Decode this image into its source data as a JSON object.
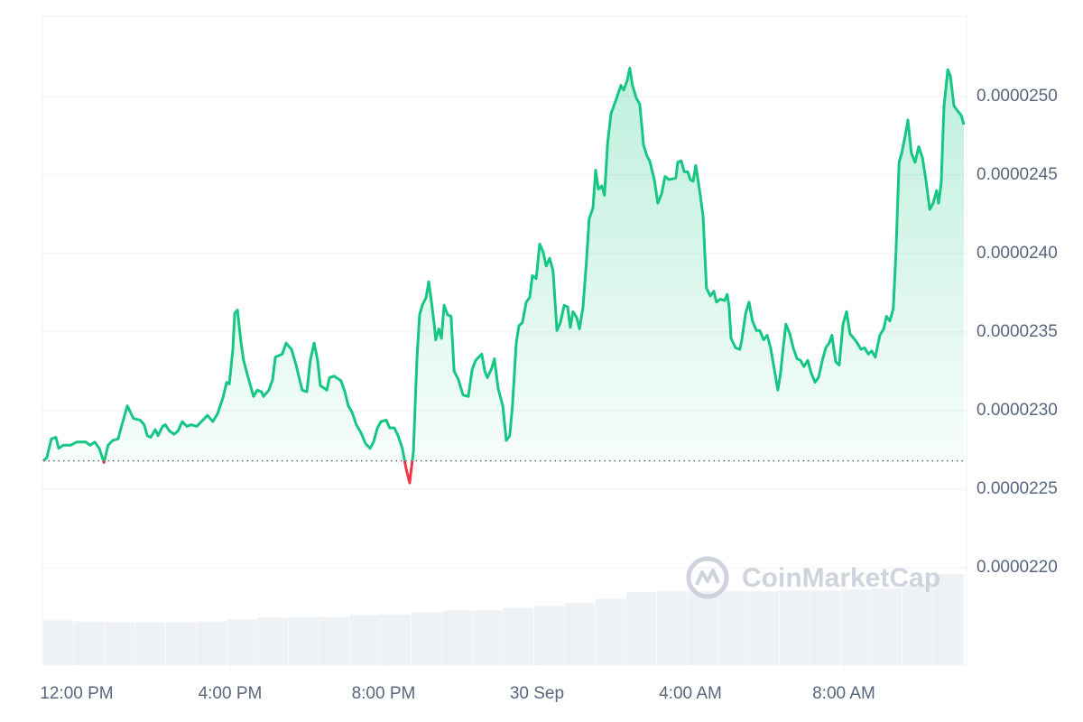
{
  "chart_data": {
    "type": "line",
    "watermark": "CoinMarketCap",
    "x": [
      -0.87,
      -0.78,
      -0.66,
      -0.54,
      -0.47,
      -0.35,
      -0.16,
      0,
      0.24,
      0.35,
      0.47,
      0.59,
      0.71,
      0.82,
      0.94,
      1.08,
      1.18,
      1.32,
      1.48,
      1.65,
      1.76,
      1.84,
      1.93,
      2.05,
      2.12,
      2.24,
      2.31,
      2.42,
      2.54,
      2.64,
      2.75,
      2.87,
      2.99,
      3.13,
      3.29,
      3.41,
      3.55,
      3.67,
      3.81,
      3.91,
      3.98,
      4.07,
      4.12,
      4.19,
      4.28,
      4.35,
      4.47,
      4.61,
      4.71,
      4.82,
      4.87,
      5.01,
      5.11,
      5.18,
      5.36,
      5.46,
      5.6,
      5.72,
      5.81,
      5.88,
      6,
      6.09,
      6.19,
      6.28,
      6.35,
      6.52,
      6.59,
      6.71,
      6.89,
      6.99,
      7.08,
      7.18,
      7.29,
      7.41,
      7.53,
      7.65,
      7.74,
      7.84,
      7.93,
      8.07,
      8.16,
      8.28,
      8.38,
      8.49,
      8.59,
      8.68,
      8.78,
      8.87,
      8.94,
      9.01,
      9.11,
      9.18,
      9.25,
      9.32,
      9.36,
      9.44,
      9.51,
      9.58,
      9.67,
      9.76,
      9.84,
      9.95,
      10.07,
      10.21,
      10.31,
      10.4,
      10.56,
      10.64,
      10.71,
      10.82,
      10.89,
      10.99,
      11.11,
      11.2,
      11.29,
      11.36,
      11.46,
      11.53,
      11.62,
      11.72,
      11.81,
      11.88,
      11.98,
      12.07,
      12.16,
      12.24,
      12.33,
      12.42,
      12.52,
      12.61,
      12.71,
      12.8,
      12.87,
      12.94,
      13.04,
      13.11,
      13.2,
      13.29,
      13.36,
      13.46,
      13.53,
      13.6,
      13.69,
      13.76,
      13.84,
      13.93,
      14.05,
      14.19,
      14.26,
      14.35,
      14.42,
      14.49,
      14.59,
      14.68,
      14.78,
      14.87,
      14.94,
      15.06,
      15.15,
      15.25,
      15.34,
      15.44,
      15.62,
      15.67,
      15.76,
      15.84,
      15.93,
      16,
      16.07,
      16.14,
      16.24,
      16.33,
      16.42,
      16.52,
      16.61,
      16.68,
      16.78,
      16.89,
      16.96,
      17.01,
      17.06,
      17.18,
      17.29,
      17.34,
      17.44,
      17.53,
      17.62,
      17.72,
      17.81,
      17.91,
      18,
      18.09,
      18.19,
      18.28,
      18.35,
      18.42,
      18.49,
      18.59,
      18.68,
      18.78,
      18.87,
      18.96,
      19.06,
      19.15,
      19.25,
      19.34,
      19.44,
      19.53,
      19.62,
      19.69,
      19.79,
      19.88,
      19.98,
      20.07,
      20.16,
      20.26,
      20.35,
      20.45,
      20.54,
      20.64,
      20.73,
      20.82,
      20.94,
      21.04,
      21.11,
      21.2,
      21.29,
      21.36,
      21.44,
      21.51,
      21.6,
      21.67,
      21.76,
      21.86,
      21.95,
      22.05,
      22.14,
      22.24,
      22.33,
      22.42,
      22.47,
      22.54,
      22.61,
      22.71,
      22.78,
      22.87,
      22.96,
      23.06,
      23.13
    ],
    "series": [
      {
        "color": "#16c784",
        "down_color": "#ea3943",
        "values": [
          2.268e-05,
          2.27e-05,
          2.282e-05,
          2.283e-05,
          2.276e-05,
          2.278e-05,
          2.278e-05,
          2.28e-05,
          2.28e-05,
          2.278e-05,
          2.28e-05,
          2.276e-05,
          2.267e-05,
          2.278e-05,
          2.281e-05,
          2.282e-05,
          2.291e-05,
          2.303e-05,
          2.295e-05,
          2.294e-05,
          2.291e-05,
          2.284e-05,
          2.283e-05,
          2.288e-05,
          2.284e-05,
          2.29e-05,
          2.291e-05,
          2.287e-05,
          2.285e-05,
          2.287e-05,
          2.293e-05,
          2.29e-05,
          2.291e-05,
          2.29e-05,
          2.294e-05,
          2.297e-05,
          2.293e-05,
          2.298e-05,
          2.308e-05,
          2.318e-05,
          2.317e-05,
          2.339e-05,
          2.362e-05,
          2.364e-05,
          2.344e-05,
          2.332e-05,
          2.321e-05,
          2.309e-05,
          2.313e-05,
          2.312e-05,
          2.309e-05,
          2.313e-05,
          2.32e-05,
          2.334e-05,
          2.336e-05,
          2.343e-05,
          2.339e-05,
          2.329e-05,
          2.32e-05,
          2.313e-05,
          2.312e-05,
          2.332e-05,
          2.343e-05,
          2.332e-05,
          2.316e-05,
          2.313e-05,
          2.321e-05,
          2.322e-05,
          2.319e-05,
          2.312e-05,
          2.303e-05,
          2.299e-05,
          2.291e-05,
          2.286e-05,
          2.279e-05,
          2.276e-05,
          2.28e-05,
          2.289e-05,
          2.293e-05,
          2.294e-05,
          2.289e-05,
          2.289e-05,
          2.284e-05,
          2.276e-05,
          2.263e-05,
          2.254e-05,
          2.274e-05,
          2.332e-05,
          2.361e-05,
          2.367e-05,
          2.372e-05,
          2.382e-05,
          2.369e-05,
          2.355e-05,
          2.345e-05,
          2.352e-05,
          2.346e-05,
          2.367e-05,
          2.361e-05,
          2.36e-05,
          2.325e-05,
          2.32e-05,
          2.31e-05,
          2.309e-05,
          2.326e-05,
          2.332e-05,
          2.336e-05,
          2.325e-05,
          2.321e-05,
          2.327e-05,
          2.333e-05,
          2.314e-05,
          2.303e-05,
          2.281e-05,
          2.284e-05,
          2.303e-05,
          2.343e-05,
          2.354e-05,
          2.356e-05,
          2.369e-05,
          2.372e-05,
          2.386e-05,
          2.384e-05,
          2.406e-05,
          2.401e-05,
          2.392e-05,
          2.397e-05,
          2.389e-05,
          2.351e-05,
          2.356e-05,
          2.367e-05,
          2.366e-05,
          2.353e-05,
          2.363e-05,
          2.359e-05,
          2.352e-05,
          2.366e-05,
          2.395e-05,
          2.422e-05,
          2.429e-05,
          2.453e-05,
          2.441e-05,
          2.443e-05,
          2.437e-05,
          2.47e-05,
          2.489e-05,
          2.497e-05,
          2.507e-05,
          2.504e-05,
          2.51e-05,
          2.518e-05,
          2.507e-05,
          2.499e-05,
          2.495e-05,
          2.469e-05,
          2.462e-05,
          2.459e-05,
          2.447e-05,
          2.432e-05,
          2.438e-05,
          2.449e-05,
          2.447e-05,
          2.448e-05,
          2.458e-05,
          2.459e-05,
          2.452e-05,
          2.452e-05,
          2.447e-05,
          2.446e-05,
          2.456e-05,
          2.44e-05,
          2.424e-05,
          2.378e-05,
          2.373e-05,
          2.376e-05,
          2.369e-05,
          2.371e-05,
          2.37e-05,
          2.374e-05,
          2.366e-05,
          2.346e-05,
          2.34e-05,
          2.339e-05,
          2.345e-05,
          2.362e-05,
          2.369e-05,
          2.357e-05,
          2.351e-05,
          2.351e-05,
          2.345e-05,
          2.348e-05,
          2.34e-05,
          2.326e-05,
          2.313e-05,
          2.324e-05,
          2.34e-05,
          2.355e-05,
          2.349e-05,
          2.34e-05,
          2.333e-05,
          2.332e-05,
          2.328e-05,
          2.332e-05,
          2.324e-05,
          2.318e-05,
          2.321e-05,
          2.332e-05,
          2.34e-05,
          2.343e-05,
          2.348e-05,
          2.331e-05,
          2.329e-05,
          2.355e-05,
          2.363e-05,
          2.349e-05,
          2.346e-05,
          2.343e-05,
          2.339e-05,
          2.34e-05,
          2.336e-05,
          2.338e-05,
          2.334e-05,
          2.348e-05,
          2.352e-05,
          2.36e-05,
          2.357e-05,
          2.365e-05,
          2.401e-05,
          2.458e-05,
          2.464e-05,
          2.475e-05,
          2.485e-05,
          2.464e-05,
          2.458e-05,
          2.468e-05,
          2.461e-05,
          2.447e-05,
          2.428e-05,
          2.432e-05,
          2.44e-05,
          2.432e-05,
          2.445e-05,
          2.493e-05,
          2.517e-05,
          2.513e-05,
          2.494e-05,
          2.491e-05,
          2.488e-05,
          2.482e-05
        ]
      }
    ],
    "volume": {
      "color": "#eff2f5",
      "values": [
        49,
        48,
        47,
        47,
        47,
        48,
        50,
        52,
        53,
        53,
        55,
        56,
        58,
        60,
        60,
        63,
        65,
        68,
        73,
        80,
        81,
        81,
        81,
        81,
        82,
        82,
        83,
        84,
        88,
        100
      ]
    },
    "xlim": [
      -0.87,
      23.13
    ],
    "ylim": [
      2.138e-05,
      2.551e-05
    ],
    "xticks": [
      {
        "value": 0,
        "label": "12:00 PM"
      },
      {
        "value": 4,
        "label": "4:00 PM"
      },
      {
        "value": 8,
        "label": "8:00 PM"
      },
      {
        "value": 12,
        "label": "30 Sep"
      },
      {
        "value": 16,
        "label": "4:00 AM"
      },
      {
        "value": 20,
        "label": "8:00 AM"
      }
    ],
    "yticks": [
      {
        "value": 2.2e-05,
        "label": "0.0000220"
      },
      {
        "value": 2.25e-05,
        "label": "0.0000225"
      },
      {
        "value": 2.3e-05,
        "label": "0.0000230"
      },
      {
        "value": 2.35e-05,
        "label": "0.0000235"
      },
      {
        "value": 2.4e-05,
        "label": "0.0000240"
      },
      {
        "value": 2.45e-05,
        "label": "0.0000245"
      },
      {
        "value": 2.5e-05,
        "label": "0.0000250"
      }
    ],
    "grid": true
  }
}
